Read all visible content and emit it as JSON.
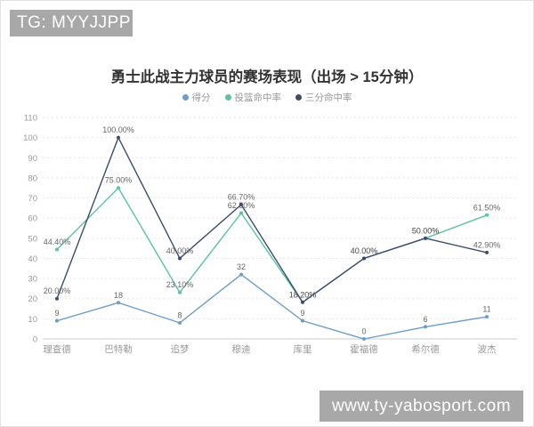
{
  "header": {
    "tag_label": "TG: MYYJJPP"
  },
  "title": "勇士此战主力球员的赛场表现（出场 > 15分钟）",
  "footer": {
    "website": "www.ty-yabosport.com"
  },
  "colors": {
    "banner_bg": "#a8a8a8",
    "banner_text": "#ffffff",
    "title_text": "#333333",
    "axis_text": "#999999",
    "grid_line": "#e6e6e6",
    "axis_line": "#cccccc",
    "label_text": "#666666"
  },
  "chart_data": {
    "type": "line",
    "title": "勇士此战主力球员的赛场表现（出场 > 15分钟）",
    "categories": [
      "理查德",
      "巴特勒",
      "追梦",
      "穆迪",
      "库里",
      "霍福德",
      "希尔德",
      "波杰"
    ],
    "series": [
      {
        "name": "得分",
        "color": "#6b9dc8",
        "values": [
          9,
          18,
          8,
          32,
          9,
          0,
          6,
          11
        ],
        "labels": [
          "9",
          "18",
          "8",
          "32",
          "9",
          "0",
          "6",
          "11"
        ]
      },
      {
        "name": "投篮命中率",
        "color": "#5cc3a1",
        "values": [
          44.4,
          75.0,
          23.1,
          62.5,
          18.2,
          40.0,
          50.0,
          61.5
        ],
        "labels": [
          "44.40%",
          "75.00%",
          "23.10%",
          "62.50%",
          "18.20%",
          "40.00%",
          "50.00%",
          "61.50%"
        ]
      },
      {
        "name": "三分命中率",
        "color": "#3d4c6e",
        "values": [
          20.0,
          100.0,
          40.0,
          66.7,
          18.2,
          40.0,
          50.0,
          42.9
        ],
        "labels": [
          "20.00%",
          "100.00%",
          "40.00%",
          "66.70%",
          "18.20%",
          "40.00%",
          "50.00%",
          "42.90%"
        ]
      }
    ],
    "ylim": [
      0,
      110
    ],
    "ytick_interval": 10,
    "grid": "dashed-horizontal",
    "legend_position": "top-center"
  }
}
